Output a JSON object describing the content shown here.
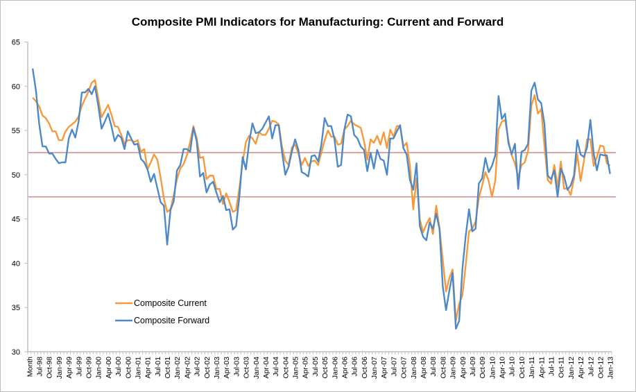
{
  "chart_data": {
    "type": "line",
    "title": "Composite PMI Indicators for Manufacturing: Current and Forward",
    "xlabel": "",
    "ylabel": "",
    "ylim": [
      30,
      65
    ],
    "y_ticks": [
      "30",
      "35",
      "40",
      "45",
      "50",
      "55",
      "60",
      "65"
    ],
    "x_tick_labels": [
      "Month",
      "Jul-98",
      "Oct-98",
      "Jan-99",
      "Apr-99",
      "Jul-99",
      "Oct-99",
      "Jan-00",
      "Apr-00",
      "Jul-00",
      "Oct-00",
      "Jan-01",
      "Apr-01",
      "Jul-01",
      "Oct-01",
      "Jan-02",
      "Apr-02",
      "Jul-02",
      "Oct-02",
      "Jan-03",
      "Apr-03",
      "Jul-03",
      "Oct-03",
      "Jan-04",
      "Apr-04",
      "Jul-04",
      "Oct-04",
      "Jan-05",
      "Apr-05",
      "Jul-05",
      "Oct-05",
      "Jan-06",
      "Apr-06",
      "Jul-06",
      "Oct-06",
      "Jan-07",
      "Apr-07",
      "Jul-07",
      "Oct-07",
      "Jan-08",
      "Apr-08",
      "Jul-08",
      "Oct-08",
      "Jan-09",
      "Apr-09",
      "Jul-09",
      "Oct-09",
      "Jan-10",
      "Apr-10",
      "Jul-10",
      "Oct-10",
      "Jan-11",
      "Apr-11",
      "Jul-11",
      "Oct-11",
      "Jan-12",
      "Apr-12",
      "Jul-12",
      "Oct-12",
      "Jan-13"
    ],
    "x_range": [
      "May-98",
      "Jan-13"
    ],
    "grid": false,
    "legend_position": "bottom-left",
    "reference_lines": [
      {
        "value": 52.5,
        "color": "#d68f8f"
      },
      {
        "value": 47.5,
        "color": "#d68f8f"
      }
    ],
    "series": [
      {
        "name": "Composite Current",
        "color": "#f7993a",
        "values": [
          58.7,
          58.3,
          57.7,
          56.7,
          56.4,
          55.8,
          54.9,
          54.9,
          53.9,
          53.9,
          54.9,
          55.4,
          55.7,
          56.0,
          56.6,
          57.8,
          58.6,
          59.4,
          60.4,
          60.7,
          58.6,
          56.5,
          57.2,
          57.9,
          56.8,
          55.5,
          55.4,
          54.5,
          53.5,
          53.9,
          53.9,
          53.7,
          53.9,
          52.6,
          52.9,
          50.6,
          51.4,
          52.3,
          51.7,
          49.7,
          47.3,
          45.8,
          46.1,
          47.7,
          49.5,
          50.7,
          51.2,
          52.2,
          53.7,
          55.5,
          54.1,
          51.9,
          52.0,
          49.5,
          49.9,
          49.9,
          48.4,
          48.4,
          46.7,
          47.9,
          46.9,
          45.8,
          46.0,
          48.5,
          51.4,
          53.7,
          54.4,
          54.1,
          53.5,
          54.8,
          54.5,
          54.5,
          55.2,
          56.1,
          56.0,
          55.7,
          53.2,
          51.6,
          51.1,
          53.1,
          53.4,
          52.4,
          51.1,
          51.9,
          51.0,
          51.5,
          51.6,
          51.1,
          52.5,
          53.9,
          55.0,
          54.3,
          54.3,
          53.4,
          53.5,
          55.1,
          55.5,
          56.1,
          55.7,
          55.5,
          55.3,
          53.8,
          51.7,
          54.0,
          53.6,
          54.4,
          53.4,
          54.8,
          53.0,
          55.1,
          54.3,
          55.5,
          55.5,
          53.2,
          53.6,
          51.0,
          46.1,
          49.6,
          45.0,
          43.5,
          44.4,
          45.1,
          43.3,
          46.5,
          44.0,
          40.4,
          36.8,
          38.3,
          39.3,
          33.5,
          35.4,
          36.4,
          39.8,
          43.6,
          43.9,
          44.7,
          47.4,
          48.8,
          50.3,
          49.3,
          47.5,
          49.3,
          55.1,
          56.0,
          56.2,
          53.9,
          52.2,
          51.3,
          49.7,
          51.1,
          51.4,
          52.7,
          57.8,
          59.0,
          56.9,
          57.4,
          53.2,
          49.4,
          49.0,
          51.1,
          48.6,
          51.5,
          48.4,
          48.5,
          47.7,
          49.6,
          52.3,
          49.3,
          51.5,
          54.0,
          54.0,
          51.0,
          52.0,
          53.3,
          53.2,
          51.3,
          51.0
        ]
      },
      {
        "name": "Composite Forward",
        "color": "#4d89c6",
        "values": [
          62.0,
          59.5,
          55.7,
          53.2,
          53.2,
          52.4,
          52.4,
          51.8,
          51.3,
          51.4,
          51.4,
          54.1,
          55.1,
          54.2,
          56.0,
          59.3,
          59.3,
          59.7,
          59.1,
          60.0,
          57.8,
          55.2,
          56.0,
          56.9,
          55.5,
          53.8,
          54.5,
          54.2,
          52.9,
          54.9,
          54.1,
          53.4,
          53.5,
          51.8,
          51.4,
          50.6,
          49.2,
          50.1,
          48.5,
          46.9,
          46.5,
          42.1,
          46.0,
          47.0,
          50.5,
          51.1,
          52.9,
          52.9,
          52.6,
          55.3,
          53.8,
          49.8,
          50.2,
          48.0,
          48.9,
          49.2,
          48.0,
          46.9,
          47.6,
          46.0,
          46.1,
          43.8,
          44.2,
          47.5,
          52.0,
          50.6,
          53.7,
          55.8,
          54.7,
          54.8,
          55.2,
          55.9,
          56.6,
          54.1,
          55.6,
          55.6,
          52.6,
          50.0,
          50.9,
          52.6,
          54.0,
          52.8,
          50.3,
          50.1,
          49.8,
          52.1,
          52.2,
          51.5,
          53.4,
          56.4,
          55.5,
          55.5,
          54.0,
          50.9,
          51.1,
          55.1,
          56.8,
          56.6,
          54.5,
          54.1,
          53.2,
          52.8,
          50.4,
          52.5,
          50.7,
          52.8,
          51.8,
          51.6,
          50.0,
          54.1,
          54.1,
          54.9,
          55.6,
          53.0,
          52.3,
          49.4,
          48.3,
          51.3,
          44.2,
          43.0,
          42.6,
          44.6,
          43.9,
          45.6,
          43.9,
          37.4,
          34.7,
          36.9,
          38.9,
          32.6,
          33.5,
          39.4,
          43.1,
          46.1,
          43.6,
          43.9,
          49.0,
          49.6,
          51.9,
          50.3,
          51.0,
          52.2,
          58.9,
          56.3,
          56.9,
          53.6,
          52.3,
          53.5,
          48.4,
          52.6,
          52.8,
          53.5,
          59.5,
          60.4,
          58.5,
          58.1,
          55.7,
          49.9,
          49.5,
          50.5,
          47.5,
          50.7,
          49.8,
          48.3,
          48.8,
          49.9,
          53.9,
          52.3,
          52.0,
          53.1,
          56.2,
          52.4,
          50.5,
          52.3,
          52.2,
          52.2,
          50.1
        ]
      }
    ]
  }
}
